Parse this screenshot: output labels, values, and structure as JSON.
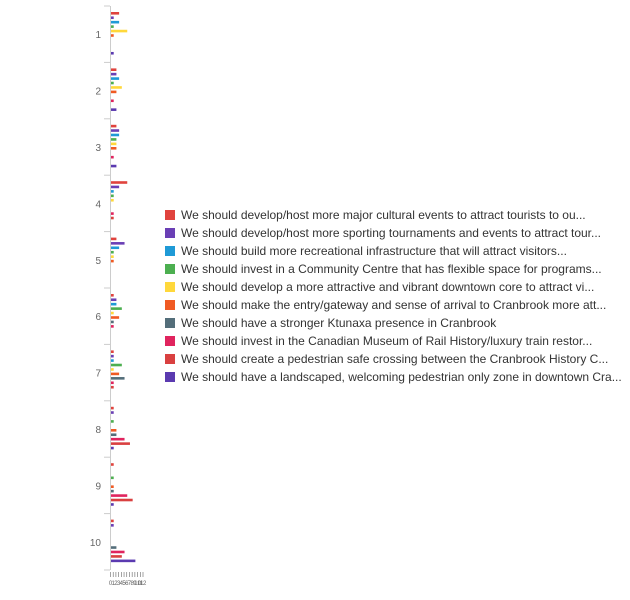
{
  "chart_data": {
    "type": "bar",
    "orientation": "horizontal",
    "categories": [
      "1",
      "2",
      "3",
      "4",
      "5",
      "6",
      "7",
      "8",
      "9",
      "10"
    ],
    "series": [
      {
        "name": "We should develop/host more major cultural events to attract tourists to ou...",
        "color": "#e0433d",
        "values": [
          3,
          2,
          2,
          6,
          2,
          1,
          1,
          1,
          1,
          1
        ]
      },
      {
        "name": "We should develop/host more sporting tournaments and events to attract tour...",
        "color": "#6a3fb5",
        "values": [
          1,
          2,
          3,
          3,
          5,
          2,
          1,
          1,
          0,
          1
        ]
      },
      {
        "name": "We should build more recreational infrastructure that will attract visitors...",
        "color": "#1f9ad6",
        "values": [
          3,
          3,
          3,
          1,
          3,
          2,
          1,
          0,
          0,
          0
        ]
      },
      {
        "name": "We should invest in a Community Centre that has flexible space for programs...",
        "color": "#4caf50",
        "values": [
          1,
          1,
          2,
          1,
          1,
          4,
          4,
          1,
          1,
          0
        ]
      },
      {
        "name": "We should develop a more attractive and vibrant downtown core to attract vi...",
        "color": "#ffd83b",
        "values": [
          6,
          4,
          2,
          1,
          1,
          1,
          1,
          0,
          0,
          0
        ]
      },
      {
        "name": "We should make the entry/gateway and sense of arrival to Cranbrook more att...",
        "color": "#f05a23",
        "values": [
          1,
          2,
          2,
          0,
          1,
          3,
          3,
          2,
          1,
          0
        ]
      },
      {
        "name": "We should have a stronger Ktunaxa presence in Cranbrook",
        "color": "#546e7a",
        "values": [
          0,
          0,
          0,
          0,
          0,
          1,
          5,
          2,
          1,
          2
        ]
      },
      {
        "name": "We should invest in the Canadian Museum of Rail History/luxury train restor...",
        "color": "#e0245e",
        "values": [
          0,
          1,
          1,
          1,
          0,
          1,
          1,
          5,
          6,
          5
        ]
      },
      {
        "name": "We should create a pedestrian safe crossing between the Cranbrook History C...",
        "color": "#d94040",
        "values": [
          0,
          0,
          0,
          1,
          0,
          0,
          1,
          7,
          8,
          4
        ]
      },
      {
        "name": "We should have a landscaped, welcoming pedestrian only zone in downtown Cra...",
        "color": "#5b3ab0",
        "values": [
          1,
          2,
          2,
          0,
          0,
          0,
          0,
          1,
          1,
          9
        ]
      }
    ],
    "xlim": [
      0,
      12
    ],
    "xticks": [
      "0",
      "1",
      "2",
      "3",
      "4",
      "5",
      "6",
      "7",
      "8",
      "9",
      "10",
      "11",
      "12"
    ],
    "legend_position": "right"
  }
}
